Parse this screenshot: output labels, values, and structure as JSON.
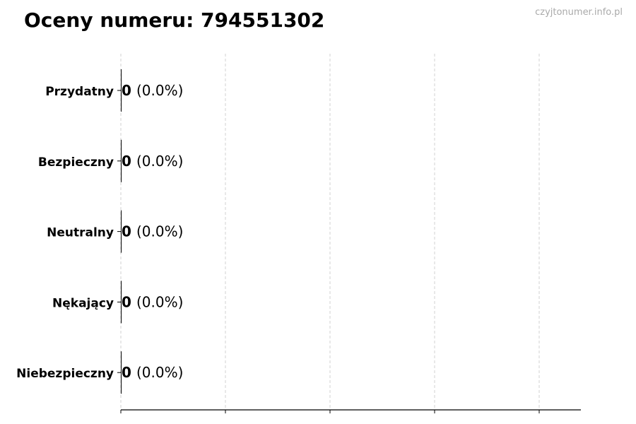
{
  "chart_data": {
    "type": "bar",
    "orientation": "horizontal",
    "title": "Oceny numeru: 794551302",
    "categories": [
      "Przydatny",
      "Bezpieczny",
      "Neutralny",
      "Nękający",
      "Niebezpieczny"
    ],
    "values": [
      0,
      0,
      0,
      0,
      0
    ],
    "data_labels": [
      {
        "count": "0",
        "percent": "(0.0%)"
      },
      {
        "count": "0",
        "percent": "(0.0%)"
      },
      {
        "count": "0",
        "percent": "(0.0%)"
      },
      {
        "count": "0",
        "percent": "(0.0%)"
      },
      {
        "count": "0",
        "percent": "(0.0%)"
      }
    ],
    "xlabel": "",
    "ylabel": "",
    "grid": "vertical dashed",
    "x_ticks_count": 5,
    "bar_color": "#000000"
  },
  "watermark": "czyjtonumer.info.pl"
}
